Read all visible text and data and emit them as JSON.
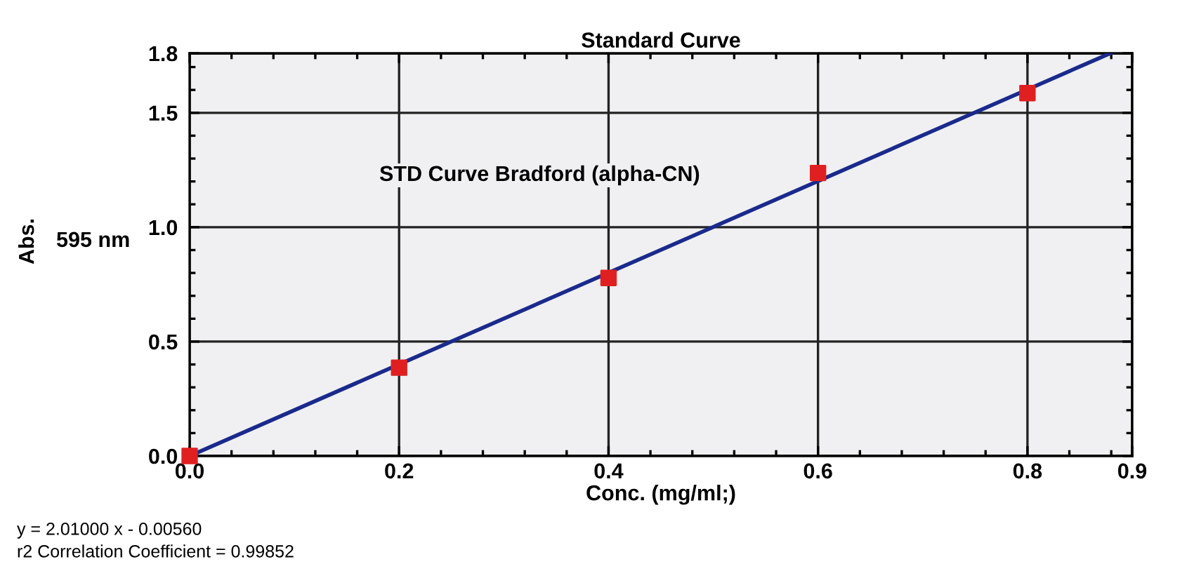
{
  "chart_data": {
    "type": "scatter",
    "title": "Standard Curve",
    "xlabel": "Conc. (mg/ml;)",
    "x": [
      0,
      0.2,
      0.4,
      0.6,
      0.8
    ],
    "series": [
      {
        "color": "#e02020",
        "marker": "square",
        "values": [
          0,
          0.386,
          0.778,
          1.237,
          1.586
        ]
      },
      {
        "type": "line",
        "color": "#1a2a8c",
        "marker": "none",
        "line_style": "solid",
        "x": [
          0,
          0.879
        ],
        "values": [
          0,
          1.76
        ]
      }
    ],
    "xlim": [
      0,
      0.9
    ],
    "ylim": [
      0,
      1.76
    ],
    "xticks": [
      {
        "value": 0,
        "label": "0.0"
      },
      {
        "value": 0.04,
        "label": null
      },
      {
        "value": 0.08,
        "label": null
      },
      {
        "value": 0.12,
        "label": null
      },
      {
        "value": 0.16,
        "label": null
      },
      {
        "value": 0.2,
        "label": "0.2"
      },
      {
        "value": 0.24,
        "label": null
      },
      {
        "value": 0.28,
        "label": null
      },
      {
        "value": 0.32,
        "label": null
      },
      {
        "value": 0.36,
        "label": null
      },
      {
        "value": 0.4,
        "label": "0.4"
      },
      {
        "value": 0.44,
        "label": null
      },
      {
        "value": 0.48,
        "label": null
      },
      {
        "value": 0.52,
        "label": null
      },
      {
        "value": 0.56,
        "label": null
      },
      {
        "value": 0.6,
        "label": "0.6"
      },
      {
        "value": 0.64,
        "label": null
      },
      {
        "value": 0.68,
        "label": null
      },
      {
        "value": 0.72,
        "label": null
      },
      {
        "value": 0.76,
        "label": null
      },
      {
        "value": 0.8,
        "label": "0.8"
      },
      {
        "value": 0.84,
        "label": null
      },
      {
        "value": 0.88,
        "label": null
      },
      {
        "value": 0.9,
        "label": "0.9"
      }
    ],
    "yticks": [
      {
        "value": 0,
        "label": "0.0"
      },
      {
        "value": 0.1,
        "label": null
      },
      {
        "value": 0.2,
        "label": null
      },
      {
        "value": 0.3,
        "label": null
      },
      {
        "value": 0.4,
        "label": null
      },
      0.5,
      {
        "value": 0.6,
        "label": null
      },
      {
        "value": 0.7,
        "label": null
      },
      {
        "value": 0.8,
        "label": null
      },
      {
        "value": 0.9,
        "label": null
      },
      {
        "value": 1.0,
        "label": "1.0"
      },
      {
        "value": 1.1,
        "label": null
      },
      {
        "value": 1.2,
        "label": null
      },
      {
        "value": 1.3,
        "label": null
      },
      {
        "value": 1.4,
        "label": null
      },
      1.5,
      {
        "value": 1.6,
        "label": null
      },
      {
        "value": 1.7,
        "label": null
      },
      {
        "value": 1.76,
        "label": "1.8"
      }
    ],
    "grid": true,
    "legend": false,
    "annotations": [
      "STD Curve Bradford (alpha-CN)",
      "Abs.",
      "595 nm",
      "y = 2.01000 x - 0.00560",
      "r2 Correlation Coefficient = 0.99852"
    ]
  }
}
